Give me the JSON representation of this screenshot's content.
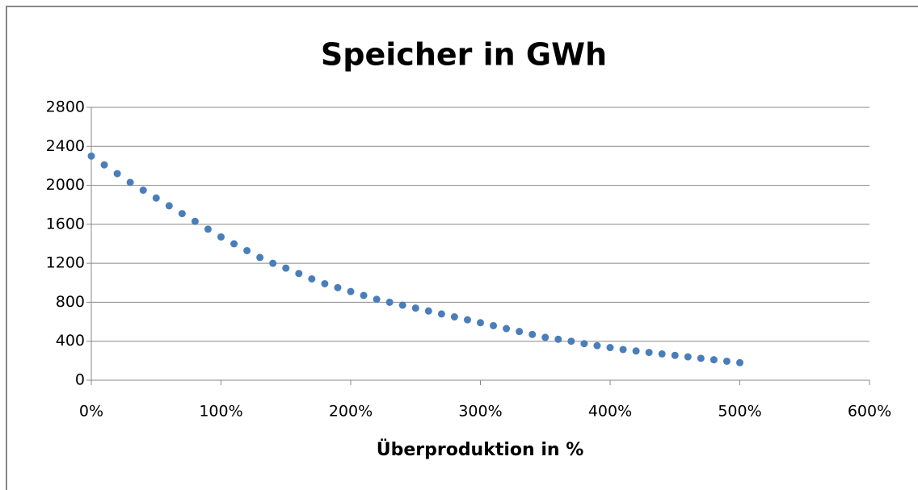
{
  "chart_data": {
    "type": "scatter",
    "title": "Speicher in GWh",
    "xlabel": "Überproduktion in %",
    "x": [
      0,
      10,
      20,
      30,
      40,
      50,
      60,
      70,
      80,
      90,
      100,
      110,
      120,
      130,
      140,
      150,
      160,
      170,
      180,
      190,
      200,
      210,
      220,
      230,
      240,
      250,
      260,
      270,
      280,
      290,
      300,
      310,
      320,
      330,
      340,
      350,
      360,
      370,
      380,
      390,
      400,
      410,
      420,
      430,
      440,
      450,
      460,
      470,
      480,
      490,
      500
    ],
    "series": [
      {
        "name": "Speicher in GWh",
        "color": "#4a7ebb",
        "values": [
          2300,
          2210,
          2120,
          2030,
          1950,
          1870,
          1790,
          1710,
          1630,
          1550,
          1470,
          1400,
          1330,
          1260,
          1200,
          1150,
          1095,
          1040,
          990,
          950,
          910,
          870,
          830,
          800,
          770,
          740,
          710,
          680,
          650,
          620,
          590,
          560,
          530,
          500,
          470,
          440,
          420,
          400,
          375,
          355,
          335,
          315,
          300,
          285,
          270,
          255,
          240,
          225,
          210,
          195,
          180
        ]
      }
    ],
    "xlim": [
      0,
      600
    ],
    "xticks": [
      {
        "value": 0,
        "label": "0%"
      },
      {
        "value": 100,
        "label": "100%"
      },
      {
        "value": 200,
        "label": "200%"
      },
      {
        "value": 300,
        "label": "300%"
      },
      {
        "value": 400,
        "label": "400%"
      },
      {
        "value": 500,
        "label": "500%"
      },
      {
        "value": 600,
        "label": "600%"
      }
    ],
    "ylim": [
      0,
      2800
    ],
    "yticks": [
      0,
      400,
      800,
      1200,
      1600,
      2000,
      2400,
      2800
    ],
    "grid": true
  }
}
